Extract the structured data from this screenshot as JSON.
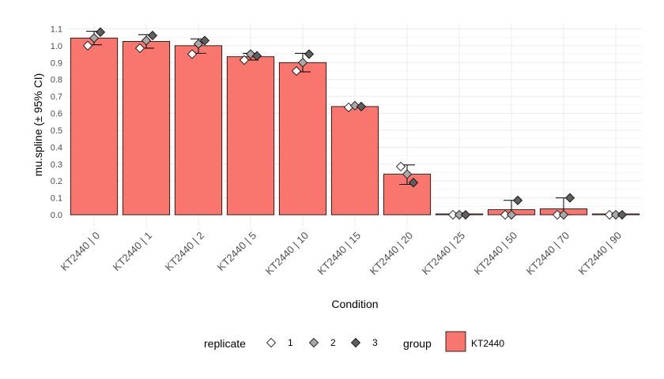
{
  "chart_data": {
    "type": "bar",
    "xlabel": "Condition",
    "ylabel": "mu.spline (± 95% CI)",
    "ylim": [
      -0.07,
      1.13
    ],
    "yticks": [
      "0.0",
      "0.1",
      "0.2",
      "0.3",
      "0.4",
      "0.5",
      "0.6",
      "0.7",
      "0.8",
      "0.9",
      "1.0",
      "1.1"
    ],
    "grid": true,
    "categories": [
      "KT2440 | 0",
      "KT2440 | 1",
      "KT2440 | 2",
      "KT2440 | 5",
      "KT2440 | 10",
      "KT2440 | 15",
      "KT2440 | 20",
      "KT2440 | 25",
      "KT2440 | 50",
      "KT2440 | 70",
      "KT2440 | 90"
    ],
    "series": [
      {
        "name": "KT2440",
        "color": "#F8766D",
        "values": [
          1.045,
          1.025,
          1.0,
          0.935,
          0.9,
          0.64,
          0.24,
          0.005,
          0.03,
          0.035,
          0.005
        ],
        "ci_low": [
          1.005,
          0.985,
          0.955,
          0.915,
          0.845,
          0.635,
          0.18,
          0.0,
          0.0,
          0.0,
          0.0
        ],
        "ci_high": [
          1.085,
          1.065,
          1.04,
          0.955,
          0.955,
          0.645,
          0.295,
          0.01,
          0.085,
          0.1,
          0.01
        ]
      }
    ],
    "replicates": [
      {
        "name": "1",
        "color": "#ffffff",
        "values": [
          1.0,
          0.985,
          0.95,
          0.915,
          0.85,
          0.635,
          0.285,
          0.0,
          0.0,
          0.0,
          0.0
        ]
      },
      {
        "name": "2",
        "color": "#a8a8a8",
        "values": [
          1.045,
          1.03,
          1.01,
          0.95,
          0.9,
          0.645,
          0.24,
          0.0,
          0.0,
          0.0,
          0.0
        ]
      },
      {
        "name": "3",
        "color": "#5f5f5f",
        "values": [
          1.08,
          1.06,
          1.03,
          0.94,
          0.95,
          0.64,
          0.19,
          0.0,
          0.085,
          0.1,
          0.0
        ]
      }
    ],
    "legend": {
      "position": "bottom",
      "replicate_title": "replicate",
      "group_title": "group",
      "group_label": "KT2440"
    }
  }
}
